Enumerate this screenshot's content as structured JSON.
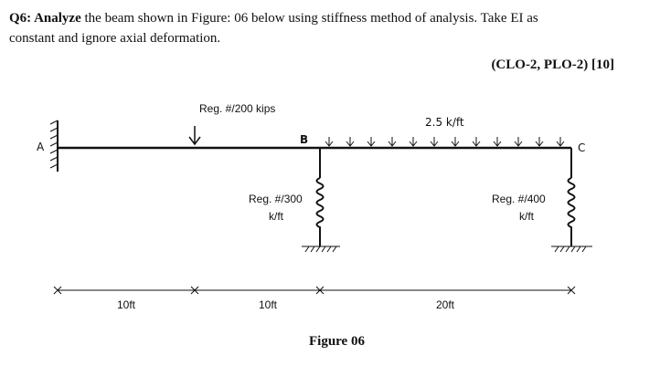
{
  "question": {
    "label": "Q6: Analyze",
    "text": "the beam shown in Figure: 06 below using stiffness method of analysis. Take EI as",
    "text2": "constant and ignore axial deformation.",
    "marks": "(CLO-2, PLO-2) [10]"
  },
  "figure": {
    "node_a": "A",
    "node_b": "B",
    "node_c": "C",
    "point_load": "Reg. #/200 kips",
    "distributed_load": "2.5 k/ft",
    "spring_b": [
      "Reg. #/300",
      "k/ft"
    ],
    "spring_c": [
      "Reg. #/400",
      "k/ft"
    ],
    "spans": [
      "10ft",
      "10ft",
      "20ft"
    ],
    "caption": "Figure 06"
  }
}
